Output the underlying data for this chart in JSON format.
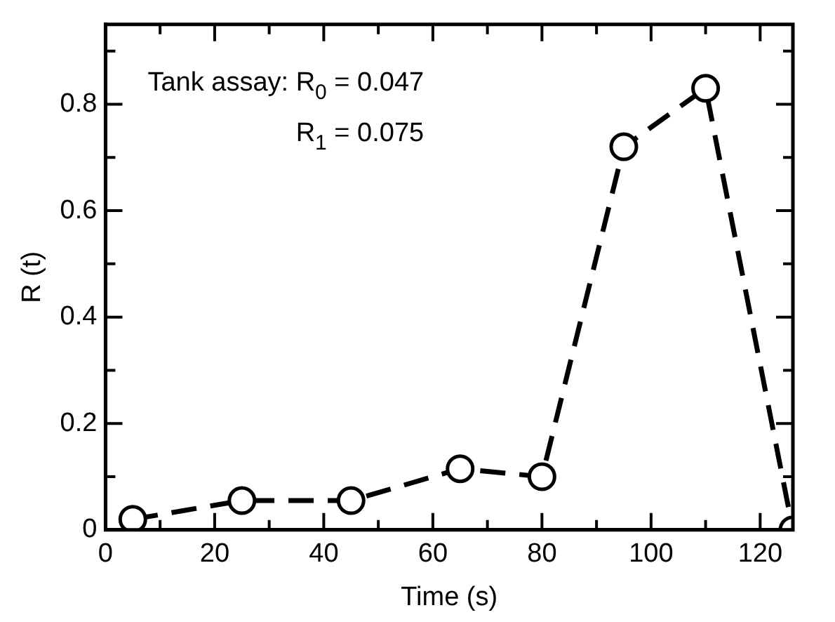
{
  "chart_data": {
    "type": "line",
    "xlabel": "Time (s)",
    "ylabel": "R (t)",
    "x": [
      5,
      25,
      45,
      65,
      80,
      95,
      110,
      126
    ],
    "series": [
      {
        "color": "#000000",
        "values": [
          0.02,
          0.055,
          0.055,
          0.115,
          0.1,
          0.72,
          0.83,
          0
        ]
      }
    ],
    "xlim": [
      0,
      126
    ],
    "ylim": [
      0,
      0.95
    ],
    "xticks": [
      0,
      {
        "value": 10,
        "label": null
      },
      20,
      {
        "value": 30,
        "label": null
      },
      40,
      {
        "value": 50,
        "label": null
      },
      60,
      {
        "value": 70,
        "label": null
      },
      80,
      {
        "value": 90,
        "label": null
      },
      100,
      {
        "value": 110,
        "label": null
      },
      120
    ],
    "yticks": [
      0,
      {
        "value": 0.1,
        "label": null
      },
      0.2,
      {
        "value": 0.3,
        "label": null
      },
      0.4,
      {
        "value": 0.5,
        "label": null
      },
      0.6,
      {
        "value": 0.7,
        "label": null
      },
      0.8,
      {
        "value": 0.9,
        "label": null
      }
    ],
    "annotations": [
      "Tank assay: R$_{0}$ = 0.047",
      "R$_{1}$ = 0.075"
    ],
    "grid": false,
    "legend": false,
    "marker": "circle",
    "line_style": "dashed"
  }
}
